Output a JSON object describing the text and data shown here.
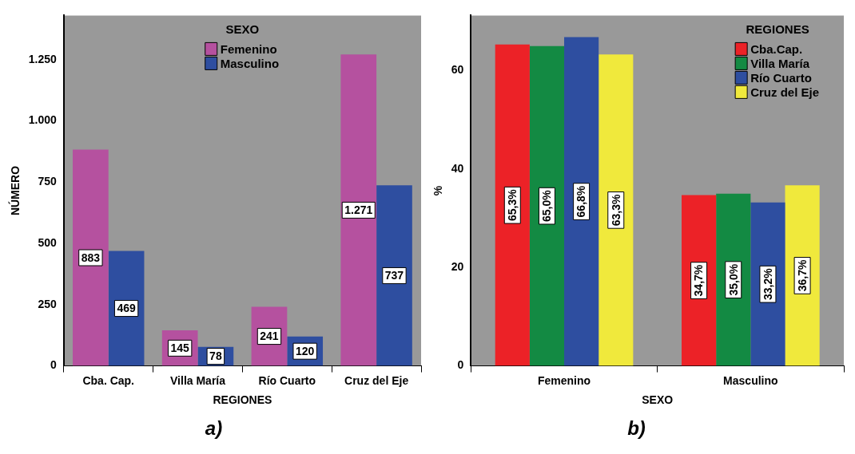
{
  "chart_data": [
    {
      "type": "bar",
      "title": "a)",
      "xlabel": "REGIONES",
      "ylabel": "NÚMERO",
      "categories": [
        "Cba. Cap.",
        "Villa María",
        "Río Cuarto",
        "Cruz del Eje"
      ],
      "series": [
        {
          "name": "Femenino",
          "color": "#b5519f",
          "values": [
            883,
            145,
            241,
            1271
          ],
          "value_labels": [
            "883",
            "145",
            "241",
            "1.271"
          ]
        },
        {
          "name": "Masculino",
          "color": "#2e4ea0",
          "values": [
            469,
            78,
            120,
            737
          ],
          "value_labels": [
            "469",
            "78",
            "120",
            "737"
          ]
        }
      ],
      "ylim": [
        0,
        1430
      ],
      "yticks": [
        0,
        250,
        500,
        750,
        {
          "value": 1000,
          "label": "1.000"
        },
        {
          "value": 1250,
          "label": "1.250"
        }
      ],
      "legend": "top",
      "legend_title": "SEXO"
    },
    {
      "type": "bar",
      "title": "b)",
      "xlabel": "SEXO",
      "ylabel": "%",
      "categories": [
        "Femenino",
        "Masculino"
      ],
      "series": [
        {
          "name": "Cba.Cap.",
          "color": "#ec2227",
          "values": [
            65.3,
            34.7
          ],
          "value_labels": [
            "65,3%",
            "34,7%"
          ]
        },
        {
          "name": "Villa María",
          "color": "#138a43",
          "values": [
            65.0,
            35.0
          ],
          "value_labels": [
            "65,0%",
            "35,0%"
          ]
        },
        {
          "name": "Río Cuarto",
          "color": "#2e4ea0",
          "values": [
            66.8,
            33.2
          ],
          "value_labels": [
            "66,8%",
            "33,2%"
          ]
        },
        {
          "name": "Cruz del Eje",
          "color": "#f0e93c",
          "values": [
            63.3,
            36.7
          ],
          "value_labels": [
            "63,3%",
            "36,7%"
          ]
        }
      ],
      "ylim": [
        0,
        71.2
      ],
      "yticks": [
        0,
        20,
        40,
        60
      ],
      "legend": "top right",
      "legend_title": "REGIONES"
    }
  ]
}
